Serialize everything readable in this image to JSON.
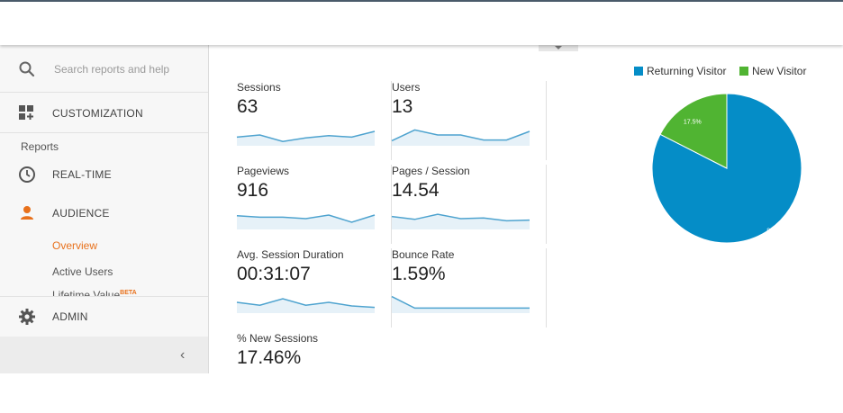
{
  "colors": {
    "accent": "#e8711c",
    "returning": "#058dc7",
    "new": "#50b432",
    "spark": "#4ea3cf"
  },
  "sidebar": {
    "search_placeholder": "Search reports and help",
    "customization_label": "CUSTOMIZATION",
    "reports_heading": "Reports",
    "realtime_label": "REAL-TIME",
    "audience_label": "AUDIENCE",
    "overview_label": "Overview",
    "active_users_label": "Active Users",
    "lifetime_label": "Lifetime Value",
    "lifetime_badge": "BETA",
    "admin_label": "ADMIN",
    "collapse_icon": "‹"
  },
  "metrics": [
    {
      "label": "Sessions",
      "value": "63",
      "trend": [
        0.35,
        0.5,
        0.05,
        0.3,
        0.45,
        0.35,
        0.75
      ]
    },
    {
      "label": "Users",
      "value": "13",
      "trend": [
        0.1,
        0.85,
        0.5,
        0.5,
        0.15,
        0.15,
        0.75
      ]
    },
    {
      "label": "Pageviews",
      "value": "916",
      "trend": [
        0.7,
        0.6,
        0.6,
        0.5,
        0.75,
        0.25,
        0.75
      ]
    },
    {
      "label": "Pages / Session",
      "value": "14.54",
      "trend": [
        0.65,
        0.45,
        0.8,
        0.5,
        0.55,
        0.35,
        0.4
      ]
    },
    {
      "label": "Avg. Session Duration",
      "value": "00:31:07",
      "trend": [
        0.5,
        0.3,
        0.75,
        0.3,
        0.5,
        0.25,
        0.15
      ]
    },
    {
      "label": "Bounce Rate",
      "value": "1.59%",
      "trend": [
        0.9,
        0.1,
        0.1,
        0.1,
        0.1,
        0.1,
        0.1
      ]
    },
    {
      "label": "% New Sessions",
      "value": "17.46%",
      "trend": []
    }
  ],
  "chart_data": {
    "type": "pie",
    "legend": [
      "Returning Visitor",
      "New Visitor"
    ],
    "slices": [
      {
        "label": "Returning Visitor",
        "value": 82.5,
        "display": "82.5%"
      },
      {
        "label": "New Visitor",
        "value": 17.5,
        "display": "17.5%"
      }
    ],
    "legend_position": "top-right"
  }
}
